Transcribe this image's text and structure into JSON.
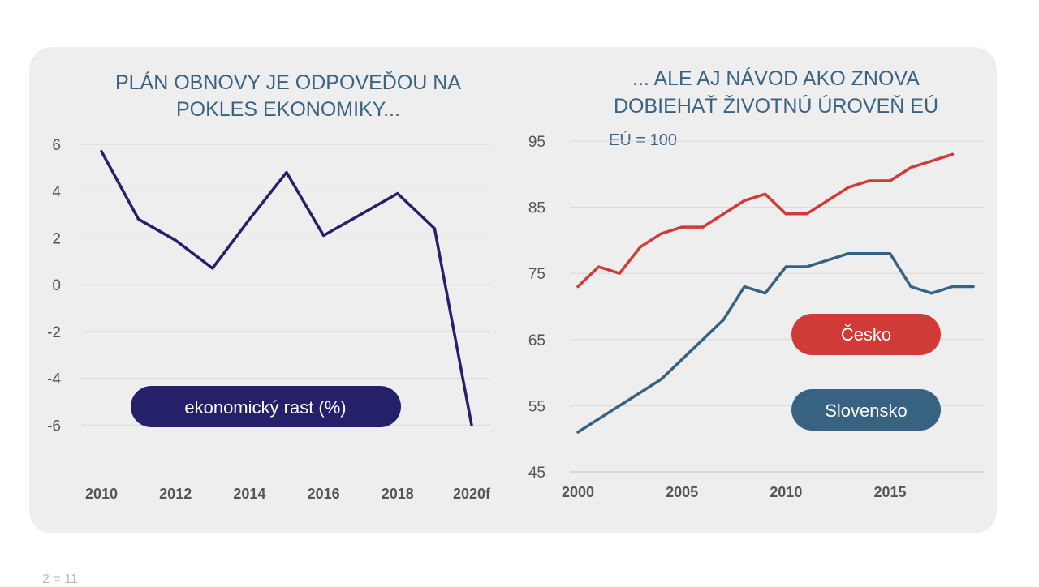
{
  "colors": {
    "growth": "#24206a",
    "cesko": "#d03a37",
    "slovensko": "#376282",
    "title": "#3a6383",
    "axis_text": "#555555",
    "grid": "#d9d9d9"
  },
  "footnote": "2 = 11",
  "chart_data": [
    {
      "type": "line",
      "title_lines": [
        "PLÁN OBNOVY JE ODPOVEĎOU NA",
        "POKLES EKONOMIKY..."
      ],
      "xlabel": "",
      "ylabel": "",
      "ylim": [
        -8,
        6
      ],
      "yticks": [
        "6",
        "4",
        "2",
        "0",
        "-2",
        "-4",
        "-6"
      ],
      "ytick_values": [
        6,
        4,
        2,
        0,
        -2,
        -4,
        -6
      ],
      "xlim": [
        2010,
        2020
      ],
      "xticks": [
        "2010",
        "2012",
        "2014",
        "2016",
        "2018",
        "2020f"
      ],
      "xtick_values": [
        2010,
        2012,
        2014,
        2016,
        2018,
        2020
      ],
      "grid": true,
      "series": [
        {
          "name": "ekonomický rast (%)",
          "color_key": "growth",
          "x": [
            2010,
            2011,
            2012,
            2013,
            2014,
            2015,
            2016,
            2017,
            2018,
            2019,
            2020
          ],
          "values": [
            5.7,
            2.8,
            1.9,
            0.7,
            2.8,
            4.8,
            2.1,
            3.0,
            3.9,
            2.4,
            -6.0
          ]
        }
      ],
      "legend": [
        "ekonomický rast (%)"
      ],
      "legend_position": "bottom-left"
    },
    {
      "type": "line",
      "title_lines": [
        "... ALE AJ NÁVOD AKO ZNOVA",
        "DOBIEHAŤ ŽIVOTNÚ ÚROVEŇ EÚ"
      ],
      "subtitle": "EÚ = 100",
      "xlabel": "",
      "ylabel": "",
      "ylim": [
        45,
        95
      ],
      "yticks": [
        "95",
        "85",
        "75",
        "65",
        "55",
        "45"
      ],
      "ytick_values": [
        95,
        85,
        75,
        65,
        55,
        45
      ],
      "xlim": [
        2000,
        2019
      ],
      "xticks": [
        "2000",
        "2005",
        "2010",
        "2015"
      ],
      "xtick_values": [
        2000,
        2005,
        2010,
        2015
      ],
      "grid": true,
      "series": [
        {
          "name": "Česko",
          "color_key": "cesko",
          "x": [
            2000,
            2001,
            2002,
            2003,
            2004,
            2005,
            2006,
            2007,
            2008,
            2009,
            2010,
            2011,
            2012,
            2013,
            2014,
            2015,
            2016,
            2017,
            2018
          ],
          "values": [
            73,
            76,
            75,
            79,
            81,
            82,
            82,
            84,
            86,
            87,
            84,
            84,
            86,
            88,
            89,
            89,
            91,
            92,
            93
          ]
        },
        {
          "name": "Slovensko",
          "color_key": "slovensko",
          "x": [
            2000,
            2001,
            2002,
            2003,
            2004,
            2005,
            2006,
            2007,
            2008,
            2009,
            2010,
            2011,
            2012,
            2013,
            2014,
            2015,
            2016,
            2017,
            2018,
            2019
          ],
          "values": [
            51,
            53,
            55,
            57,
            59,
            62,
            65,
            68,
            73,
            72,
            76,
            76,
            77,
            78,
            78,
            78,
            73,
            72,
            73,
            73
          ]
        }
      ],
      "legend": [
        "Česko",
        "Slovensko"
      ],
      "legend_position": "right"
    }
  ]
}
